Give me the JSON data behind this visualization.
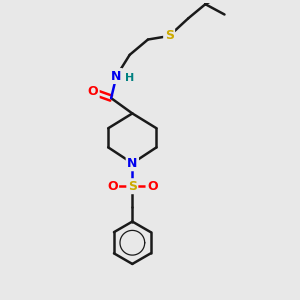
{
  "bg_color": "#e8e8e8",
  "bond_color": "#1a1a1a",
  "bond_width": 1.8,
  "atom_colors": {
    "O": "#ff0000",
    "N": "#0000ee",
    "S": "#ccaa00",
    "C": "#1a1a1a",
    "H": "#008080"
  },
  "font_size": 9,
  "fig_size": [
    3.0,
    3.0
  ],
  "dpi": 100,
  "xlim": [
    0,
    10
  ],
  "ylim": [
    0,
    10
  ]
}
